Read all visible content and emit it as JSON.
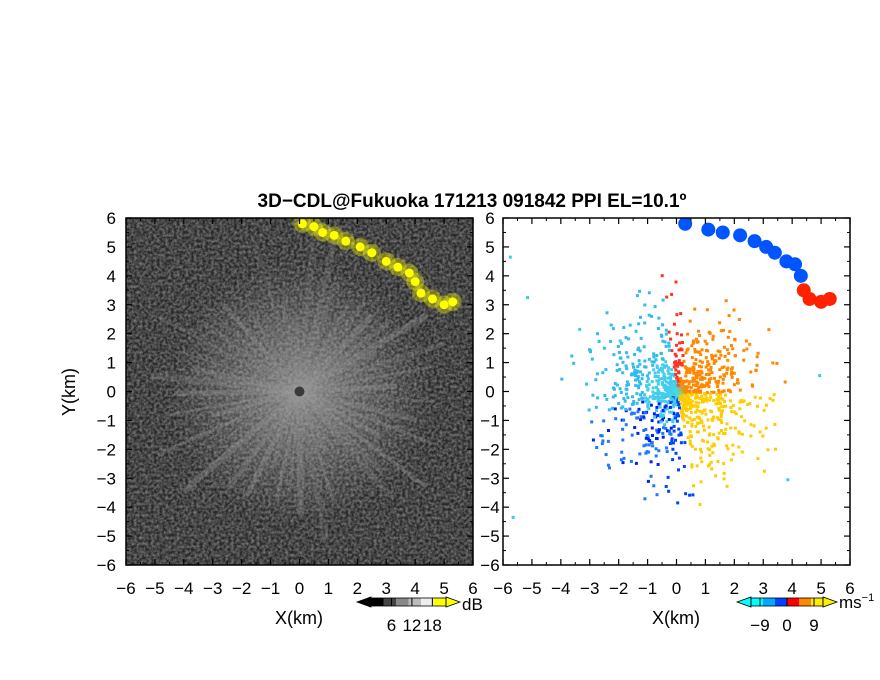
{
  "chart_data": {
    "title": "3D−CDL@Fukuoka 171213 091842 PPI EL=10.1º",
    "type": "heatmap",
    "xlabel": "X(km)",
    "ylabel": "Y(km)",
    "xlim": [
      -6,
      6
    ],
    "ylim": [
      -6,
      6
    ],
    "ticks": [
      -6,
      -5,
      -4,
      -3,
      -2,
      -1,
      0,
      1,
      2,
      3,
      4,
      5,
      6
    ],
    "tick_labels": [
      "−6",
      "−5",
      "−4",
      "−3",
      "−2",
      "−1",
      "0",
      "1",
      "2",
      "3",
      "4",
      "5",
      "6"
    ],
    "panels": [
      {
        "name": "reflectivity",
        "colorbar": {
          "unit": "dB",
          "tick_values": [
            6,
            12,
            18
          ],
          "tick_labels": [
            "6",
            "12",
            "18"
          ],
          "range": [
            0,
            22
          ],
          "colors": [
            "#000000",
            "#444444",
            "#888888",
            "#bbbbbb",
            "#eeeeee",
            "#ffff00"
          ]
        },
        "cloud_echo": [
          [
            0.1,
            5.8
          ],
          [
            0.5,
            5.7
          ],
          [
            0.8,
            5.5
          ],
          [
            1.2,
            5.4
          ],
          [
            1.6,
            5.2
          ],
          [
            2.1,
            5.0
          ],
          [
            2.5,
            4.8
          ],
          [
            3.0,
            4.5
          ],
          [
            3.4,
            4.3
          ],
          [
            3.8,
            4.1
          ],
          [
            4.0,
            3.8
          ],
          [
            4.2,
            3.4
          ],
          [
            4.6,
            3.2
          ],
          [
            5.0,
            3.0
          ],
          [
            5.3,
            3.1
          ]
        ]
      },
      {
        "name": "doppler-velocity",
        "colorbar": {
          "unit": "ms",
          "unit_exponent": "−1",
          "tick_values": [
            -9,
            0,
            9
          ],
          "tick_labels": [
            "−9",
            "0",
            "9"
          ],
          "range": [
            -12,
            12
          ],
          "colors": [
            "#00ffff",
            "#00aaff",
            "#0044ff",
            "#ff0000",
            "#ff8800",
            "#ffee00"
          ]
        },
        "cloud_echo": [
          [
            0.3,
            5.8
          ],
          [
            1.1,
            5.6
          ],
          [
            1.6,
            5.5
          ],
          [
            2.2,
            5.4
          ],
          [
            2.7,
            5.2
          ],
          [
            3.1,
            5.0
          ],
          [
            3.4,
            4.8
          ],
          [
            3.8,
            4.5
          ],
          [
            4.1,
            4.4
          ],
          [
            4.3,
            4.0
          ],
          [
            4.4,
            3.5
          ],
          [
            4.6,
            3.2
          ],
          [
            5.0,
            3.1
          ],
          [
            5.3,
            3.2
          ]
        ]
      }
    ]
  }
}
